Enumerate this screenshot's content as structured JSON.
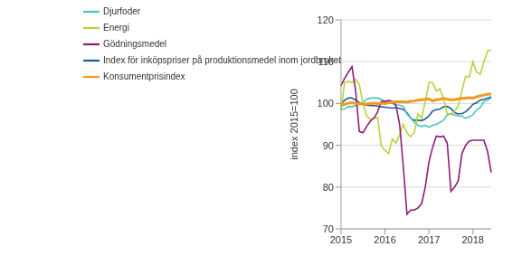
{
  "chart_data": {
    "type": "line",
    "y_label": "index 2015=100",
    "categories": [
      "2015",
      null,
      null,
      null,
      null,
      null,
      null,
      null,
      null,
      null,
      null,
      null,
      "2016",
      null,
      null,
      null,
      null,
      null,
      null,
      null,
      null,
      null,
      null,
      null,
      "2017",
      null,
      null,
      null,
      null,
      null,
      null,
      null,
      null,
      null,
      null,
      null,
      "2018",
      null,
      null,
      null,
      null,
      null
    ],
    "series": [
      {
        "name": "Index för inköpspriser på produktionsmedel inom jordbruket",
        "color": "#1f5f91",
        "values": [
          99.8,
          100.8,
          101.3,
          101.3,
          100.8,
          100.2,
          99.8,
          99.6,
          99.5,
          99.5,
          99.4,
          99.2,
          99.1,
          99.0,
          98.9,
          99.0,
          98.8,
          98.6,
          97.8,
          96.5,
          96.0,
          96.0,
          95.9,
          96.3,
          97.0,
          98.2,
          98.5,
          98.7,
          99.2,
          99.3,
          98.8,
          97.8,
          97.5,
          97.6,
          98.0,
          98.8,
          99.8,
          100.2,
          100.8,
          101.0,
          101.3,
          101.6
        ]
      },
      {
        "name": "Djurfoder",
        "color": "#4cc5c0",
        "values": [
          98.5,
          98.7,
          99.3,
          99.2,
          99.5,
          99.8,
          100.3,
          101.0,
          101.3,
          101.3,
          101.3,
          101.0,
          100.5,
          100.3,
          100.0,
          99.7,
          99.6,
          99.3,
          97.5,
          96.5,
          95.5,
          94.8,
          94.5,
          94.8,
          94.3,
          94.8,
          95.0,
          95.5,
          96.0,
          97.3,
          97.5,
          97.2,
          97.0,
          97.0,
          96.5,
          96.8,
          97.3,
          98.5,
          99.0,
          100.5,
          100.8,
          101.3
        ]
      },
      {
        "name": "Energi",
        "color": "#b6d43a",
        "values": [
          98.5,
          105,
          105.3,
          105,
          105.8,
          104.5,
          100,
          97,
          96.2,
          96.5,
          96.6,
          89.8,
          88.8,
          88,
          91.5,
          90.5,
          92.5,
          95,
          93,
          92,
          93,
          97.5,
          96.5,
          100.5,
          105,
          105,
          103,
          103.5,
          101,
          97.5,
          97.5,
          98,
          99.5,
          103,
          106.5,
          106.3,
          110,
          107.5,
          107,
          110,
          112.5,
          112.8
        ]
      },
      {
        "name": "Gödningsmedel",
        "color": "#8e1c7c",
        "values": [
          104.3,
          106,
          107.5,
          108.8,
          103,
          93.3,
          93,
          94.5,
          95.8,
          96.5,
          98,
          100.5,
          100.5,
          100.7,
          100.5,
          99.5,
          95,
          85,
          73.5,
          74.5,
          74.5,
          75,
          76,
          80,
          86,
          89.5,
          92.2,
          92,
          92.2,
          90.5,
          79,
          80,
          81.5,
          88,
          90,
          91,
          91.2,
          91.2,
          91.2,
          91.2,
          88.5,
          83.5
        ]
      },
      {
        "name": "Konsumentprisindex",
        "color": "#f39a1e",
        "values": [
          99.5,
          99.8,
          100.1,
          100.2,
          100.0,
          99.9,
          99.8,
          99.9,
          100.0,
          100.1,
          100.0,
          100.1,
          100.0,
          100.2,
          100.3,
          100.4,
          100.4,
          100.4,
          100.3,
          100.5,
          100.6,
          100.8,
          100.9,
          101.0,
          101.1,
          100.6,
          100.9,
          101.0,
          101.2,
          101.0,
          100.9,
          100.9,
          101.1,
          101.2,
          101.3,
          101.4,
          101.3,
          101.6,
          101.8,
          102.0,
          102.2,
          102.3
        ]
      }
    ],
    "ylim": [
      70,
      120
    ],
    "yticks": [
      70,
      80,
      90,
      100,
      110,
      120
    ],
    "grid": true,
    "legend": "upper left"
  }
}
